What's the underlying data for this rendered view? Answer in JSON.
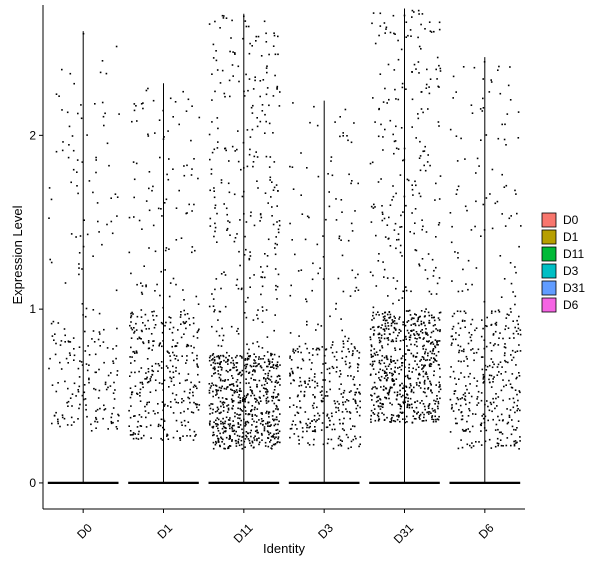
{
  "chart_data": {
    "type": "scatter",
    "subtype": "violin-jitter",
    "title": "",
    "xlabel": "Identity",
    "ylabel": "Expression Level",
    "categories": [
      "D0",
      "D1",
      "D11",
      "D3",
      "D31",
      "D6"
    ],
    "ylim": [
      -0.15,
      2.75
    ],
    "yticks": [
      0,
      1,
      2
    ],
    "grid": false,
    "legend": {
      "placement": "right",
      "entries": [
        {
          "label": "D0",
          "color": "#F8766D"
        },
        {
          "label": "D1",
          "color": "#B79F00"
        },
        {
          "label": "D11",
          "color": "#00BA38"
        },
        {
          "label": "D3",
          "color": "#00BFC4"
        },
        {
          "label": "D31",
          "color": "#619CFF"
        },
        {
          "label": "D6",
          "color": "#F564E3"
        }
      ]
    },
    "groups": [
      {
        "name": "D0",
        "max": 2.6,
        "nonzero_count": 230,
        "dense_low": 0.3,
        "dense_high": 0.9
      },
      {
        "name": "D1",
        "max": 2.3,
        "nonzero_count": 420,
        "dense_low": 0.25,
        "dense_high": 1.0
      },
      {
        "name": "D11",
        "max": 2.7,
        "nonzero_count": 900,
        "dense_low": 0.2,
        "dense_high": 0.75
      },
      {
        "name": "D3",
        "max": 2.2,
        "nonzero_count": 380,
        "dense_low": 0.2,
        "dense_high": 0.8
      },
      {
        "name": "D31",
        "max": 2.73,
        "nonzero_count": 850,
        "dense_low": 0.35,
        "dense_high": 1.0
      },
      {
        "name": "D6",
        "max": 2.45,
        "nonzero_count": 430,
        "dense_low": 0.2,
        "dense_high": 1.0
      }
    ]
  }
}
